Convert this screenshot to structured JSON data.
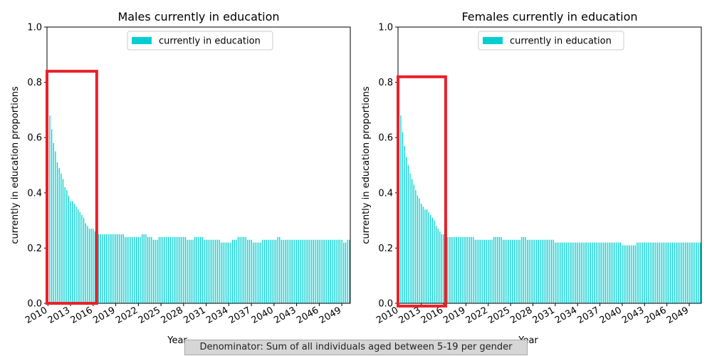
{
  "footnote": "Denominator: Sum of all individuals aged between 5-19 per gender",
  "colors": {
    "bar": "#00CED1",
    "highlight": "#E8212A",
    "axis": "#000000"
  },
  "chart_data": [
    {
      "type": "bar",
      "title": "Males currently in education",
      "xlabel": "Year",
      "ylabel": "currently in education proportions",
      "ylim": [
        0,
        1
      ],
      "yticks": [
        0.0,
        0.2,
        0.4,
        0.6,
        0.8,
        1.0
      ],
      "x_start": 2010,
      "x_tick_years": [
        2010,
        2013,
        2016,
        2019,
        2022,
        2025,
        2028,
        2031,
        2034,
        2037,
        2040,
        2043,
        2046,
        2049
      ],
      "legend": {
        "label": "currently in education",
        "placement": "upper-center"
      },
      "highlight_range": {
        "x_start": 2010,
        "x_end": 2016.6,
        "y_min": 0.0,
        "y_max": 0.84
      },
      "series": [
        {
          "values": [
            0.74,
            0.68,
            0.63,
            0.58,
            0.55,
            0.51,
            0.49,
            0.47,
            0.45,
            0.42,
            0.41,
            0.39,
            0.37,
            0.37,
            0.36,
            0.35,
            0.34,
            0.33,
            0.32,
            0.31,
            0.29,
            0.28,
            0.27,
            0.27,
            0.27,
            0.26,
            0.26,
            0.25,
            0.25,
            0.25,
            0.25,
            0.25,
            0.25,
            0.25,
            0.25,
            0.25,
            0.25,
            0.25,
            0.25,
            0.25,
            0.25,
            0.24,
            0.24,
            0.24,
            0.24,
            0.24,
            0.24,
            0.24,
            0.24,
            0.24,
            0.25,
            0.25,
            0.25,
            0.24,
            0.24,
            0.24,
            0.23,
            0.23,
            0.23,
            0.24,
            0.24,
            0.24,
            0.24,
            0.24,
            0.24,
            0.24,
            0.24,
            0.24,
            0.24,
            0.24,
            0.24,
            0.24,
            0.24,
            0.24,
            0.23,
            0.23,
            0.23,
            0.23,
            0.24,
            0.24,
            0.24,
            0.24,
            0.24,
            0.23,
            0.23,
            0.23,
            0.23,
            0.23,
            0.23,
            0.23,
            0.23,
            0.23,
            0.22,
            0.22,
            0.22,
            0.22,
            0.22,
            0.22,
            0.23,
            0.23,
            0.23,
            0.24,
            0.24,
            0.24,
            0.24,
            0.24,
            0.23,
            0.23,
            0.23,
            0.22,
            0.22,
            0.22,
            0.22,
            0.22,
            0.23,
            0.23,
            0.23,
            0.23,
            0.23,
            0.23,
            0.23,
            0.23,
            0.24,
            0.24,
            0.23,
            0.23,
            0.23,
            0.23,
            0.23,
            0.23,
            0.23,
            0.23,
            0.23,
            0.23,
            0.23,
            0.23,
            0.23,
            0.23,
            0.23,
            0.23,
            0.23,
            0.23,
            0.23,
            0.23,
            0.23,
            0.23,
            0.23,
            0.23,
            0.23,
            0.23,
            0.23,
            0.23,
            0.23,
            0.23,
            0.23,
            0.23,
            0.23,
            0.22,
            0.22,
            0.23,
            0.23
          ]
        }
      ]
    },
    {
      "type": "bar",
      "title": "Females currently in education",
      "xlabel": "Year",
      "ylabel": "currently in education proportions",
      "ylim": [
        0,
        1
      ],
      "yticks": [
        0.0,
        0.2,
        0.4,
        0.6,
        0.8,
        1.0
      ],
      "x_start": 2010,
      "x_tick_years": [
        2010,
        2013,
        2016,
        2019,
        2022,
        2025,
        2028,
        2031,
        2034,
        2037,
        2040,
        2043,
        2046,
        2049
      ],
      "legend": {
        "label": "currently in education",
        "placement": "upper-center"
      },
      "highlight_range": {
        "x_start": 2010,
        "x_end": 2016.4,
        "y_min": -0.01,
        "y_max": 0.82
      },
      "series": [
        {
          "values": [
            0.74,
            0.68,
            0.62,
            0.57,
            0.53,
            0.5,
            0.47,
            0.45,
            0.43,
            0.41,
            0.39,
            0.38,
            0.36,
            0.35,
            0.34,
            0.34,
            0.33,
            0.32,
            0.31,
            0.3,
            0.28,
            0.27,
            0.26,
            0.25,
            0.25,
            0.24,
            0.24,
            0.24,
            0.24,
            0.24,
            0.24,
            0.24,
            0.24,
            0.24,
            0.24,
            0.24,
            0.24,
            0.24,
            0.24,
            0.24,
            0.24,
            0.23,
            0.23,
            0.23,
            0.23,
            0.23,
            0.23,
            0.23,
            0.23,
            0.23,
            0.23,
            0.24,
            0.24,
            0.24,
            0.24,
            0.24,
            0.23,
            0.23,
            0.23,
            0.23,
            0.23,
            0.23,
            0.23,
            0.23,
            0.23,
            0.23,
            0.24,
            0.24,
            0.24,
            0.23,
            0.23,
            0.23,
            0.23,
            0.23,
            0.23,
            0.23,
            0.23,
            0.23,
            0.23,
            0.23,
            0.23,
            0.23,
            0.23,
            0.23,
            0.22,
            0.22,
            0.22,
            0.22,
            0.22,
            0.22,
            0.22,
            0.22,
            0.22,
            0.22,
            0.22,
            0.22,
            0.22,
            0.22,
            0.22,
            0.22,
            0.22,
            0.22,
            0.22,
            0.22,
            0.22,
            0.22,
            0.22,
            0.22,
            0.22,
            0.22,
            0.22,
            0.22,
            0.22,
            0.22,
            0.22,
            0.22,
            0.22,
            0.22,
            0.22,
            0.22,
            0.21,
            0.21,
            0.21,
            0.21,
            0.21,
            0.21,
            0.21,
            0.21,
            0.22,
            0.22,
            0.22,
            0.22,
            0.22,
            0.22,
            0.22,
            0.22,
            0.22,
            0.22,
            0.22,
            0.22,
            0.22,
            0.22,
            0.22,
            0.22,
            0.22,
            0.22,
            0.22,
            0.22,
            0.22,
            0.22,
            0.22,
            0.22,
            0.22,
            0.22,
            0.22,
            0.22,
            0.22,
            0.22,
            0.22,
            0.22,
            0.22,
            0.22,
            0.22
          ]
        }
      ]
    }
  ]
}
